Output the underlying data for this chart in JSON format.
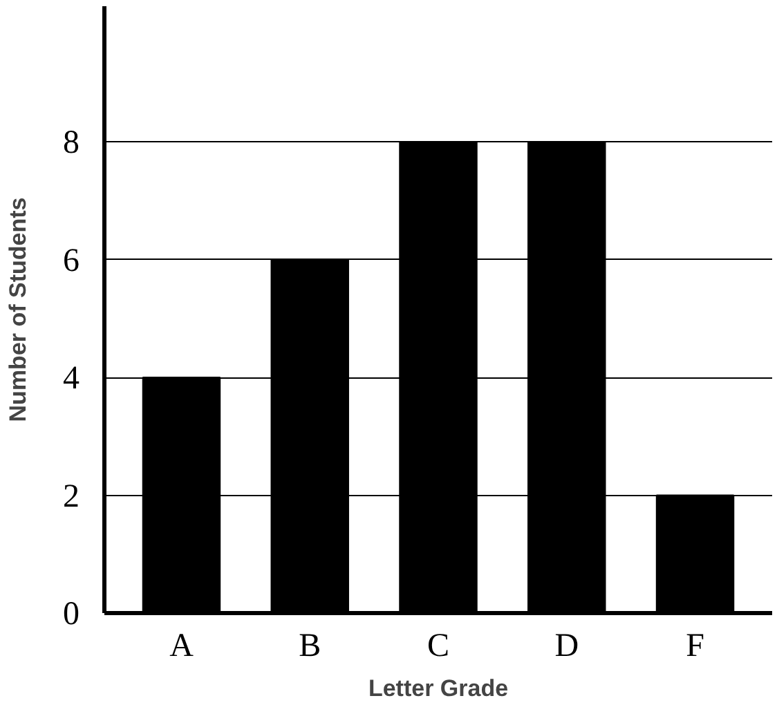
{
  "chart_data": {
    "type": "bar",
    "xlabel": "Letter Grade",
    "ylabel": "Number of Students",
    "categories": [
      "A",
      "B",
      "C",
      "D",
      "F"
    ],
    "values": [
      4,
      6,
      8,
      8,
      2
    ],
    "color": "#000000",
    "ylim": [
      0,
      10.3
    ],
    "yticks": [
      0,
      2,
      4,
      6,
      8
    ],
    "grid": "y"
  }
}
